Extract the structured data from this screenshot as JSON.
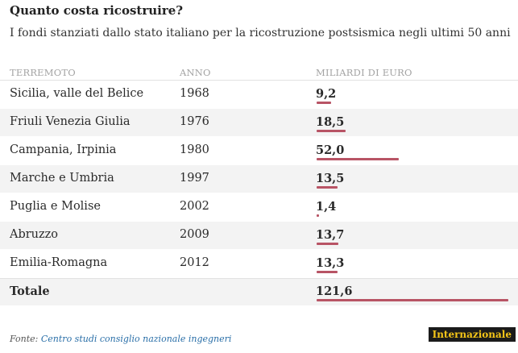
{
  "title": "Quanto costa ricostruire?",
  "subtitle": "I fondi stanziati dallo stato italiano per la ricostruzione postsismica negli ultimi 50 anni",
  "source_label": "Fonte:",
  "source_text": "Centro studi consiglio nazionale ingegneri",
  "brand": "Internazionale",
  "colors": {
    "bar": "#b85465",
    "alt_row": "#f3f3f3",
    "brand_bg": "#1b1b1b",
    "brand_text": "#f5c518"
  },
  "chart_data": {
    "type": "table",
    "columns": [
      "TERREMOTO",
      "ANNO",
      "MILIARDI DI EURO"
    ],
    "rows": [
      {
        "region": "Sicilia, valle del Belice",
        "year": "1968",
        "value_label": "9,2",
        "value": 9.2
      },
      {
        "region": "Friuli Venezia Giulia",
        "year": "1976",
        "value_label": "18,5",
        "value": 18.5
      },
      {
        "region": "Campania, Irpinia",
        "year": "1980",
        "value_label": "52,0",
        "value": 52.0
      },
      {
        "region": "Marche e Umbria",
        "year": "1997",
        "value_label": "13,5",
        "value": 13.5
      },
      {
        "region": "Puglia e Molise",
        "year": "2002",
        "value_label": "1,4",
        "value": 1.4
      },
      {
        "region": "Abruzzo",
        "year": "2009",
        "value_label": "13,7",
        "value": 13.7
      },
      {
        "region": "Emilia-Romagna",
        "year": "2012",
        "value_label": "13,3",
        "value": 13.3
      }
    ],
    "total": {
      "region": "Totale",
      "year": "",
      "value_label": "121,6",
      "value": 121.6
    },
    "bar_max_value": 121.6
  }
}
